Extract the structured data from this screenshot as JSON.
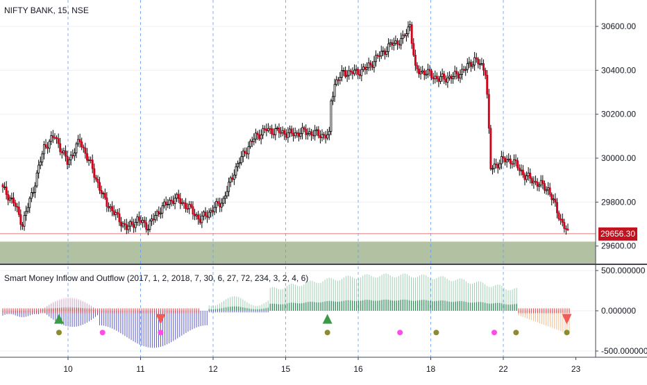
{
  "chart_data": [
    {
      "type": "candlestick",
      "title": "NIFTY BANK, 15, NSE",
      "xlabel": "",
      "ylabel": "",
      "ylim": [
        29520,
        30720
      ],
      "y_ticks": [
        {
          "value": 30600,
          "label": "30600.00"
        },
        {
          "value": 30400,
          "label": "30400.00"
        },
        {
          "value": 30200,
          "label": "30200.00"
        },
        {
          "value": 30000,
          "label": "30000.00"
        },
        {
          "value": 29800,
          "label": "29800.00"
        },
        {
          "value": 29600,
          "label": "29600.00"
        }
      ],
      "last_price": {
        "value": 29656.3,
        "label": "29656.30"
      },
      "shaded_zone": {
        "low": 29520,
        "high": 29620
      },
      "grid": true,
      "series_anchors": [
        [
          0,
          29860
        ],
        [
          6,
          29800
        ],
        [
          11,
          29700
        ],
        [
          17,
          29860
        ],
        [
          23,
          30050
        ],
        [
          29,
          30100
        ],
        [
          36,
          29980
        ],
        [
          43,
          30080
        ],
        [
          50,
          29950
        ],
        [
          56,
          29820
        ],
        [
          62,
          29750
        ],
        [
          69,
          29680
        ],
        [
          75,
          29720
        ],
        [
          81,
          29690
        ],
        [
          88,
          29770
        ],
        [
          96,
          29820
        ],
        [
          103,
          29780
        ],
        [
          110,
          29720
        ],
        [
          116,
          29760
        ],
        [
          123,
          29810
        ],
        [
          129,
          29940
        ],
        [
          135,
          30030
        ],
        [
          141,
          30100
        ],
        [
          147,
          30130
        ],
        [
          154,
          30120
        ],
        [
          161,
          30110
        ],
        [
          168,
          30120
        ],
        [
          175,
          30110
        ],
        [
          182,
          30100
        ],
        [
          183,
          30260
        ],
        [
          185,
          30340
        ],
        [
          190,
          30390
        ],
        [
          197,
          30390
        ],
        [
          203,
          30410
        ],
        [
          210,
          30470
        ],
        [
          217,
          30520
        ],
        [
          223,
          30540
        ],
        [
          227,
          30610
        ],
        [
          230,
          30400
        ],
        [
          236,
          30390
        ],
        [
          243,
          30360
        ],
        [
          251,
          30370
        ],
        [
          257,
          30400
        ],
        [
          263,
          30450
        ],
        [
          269,
          30400
        ],
        [
          270,
          30290
        ],
        [
          272,
          29950
        ],
        [
          278,
          29990
        ],
        [
          284,
          29990
        ],
        [
          291,
          29920
        ],
        [
          297,
          29890
        ],
        [
          304,
          29860
        ],
        [
          311,
          29720
        ],
        [
          315,
          29656
        ]
      ]
    },
    {
      "type": "indicator",
      "title": "Smart Money Inflow and Outflow (2017, 1, 2, 2018, 7, 30, 6, 27, 72, 234, 3, 2, 4, 6)",
      "ylim": [
        -560,
        560
      ],
      "y_ticks": [
        {
          "value": 500,
          "label": "500.000000"
        },
        {
          "value": 0,
          "label": "0.000000"
        },
        {
          "value": -500,
          "label": "-500.000000"
        }
      ],
      "buy_signals": [
        {
          "x": 1.0,
          "label": "buy"
        },
        {
          "x": 4.7,
          "label": "buy"
        }
      ],
      "sell_signals": [
        {
          "x": 2.4,
          "label": "sell"
        },
        {
          "x": 8.0,
          "label": "sell"
        }
      ],
      "olive_dots": [
        1.0,
        4.7,
        6.2,
        7.3,
        8.0,
        9.4,
        10.3
      ],
      "magenta_dots": [
        1.6,
        2.4,
        5.7,
        7.0,
        10.7,
        10.85
      ]
    }
  ],
  "x_axis": {
    "labels": [
      "10",
      "11",
      "12",
      "15",
      "16",
      "18",
      "22",
      "23"
    ],
    "session_breaks": [
      1,
      2,
      3,
      4,
      5,
      6,
      7,
      8
    ]
  },
  "colors": {
    "bull": "#ffffff",
    "bear": "#d0021b",
    "candle_outline": "#000000",
    "price_line": "#e2747a",
    "zone": "#a5b691",
    "inflow_positive": "#2e8b57",
    "outflow_negative": "#3b3bc4",
    "red_bars": "#e8383d",
    "buy_marker": "#3a9a46",
    "sell_marker": "#f25a5a",
    "olive_dot": "#8b8b32",
    "magenta_dot": "#ff4ce6"
  }
}
